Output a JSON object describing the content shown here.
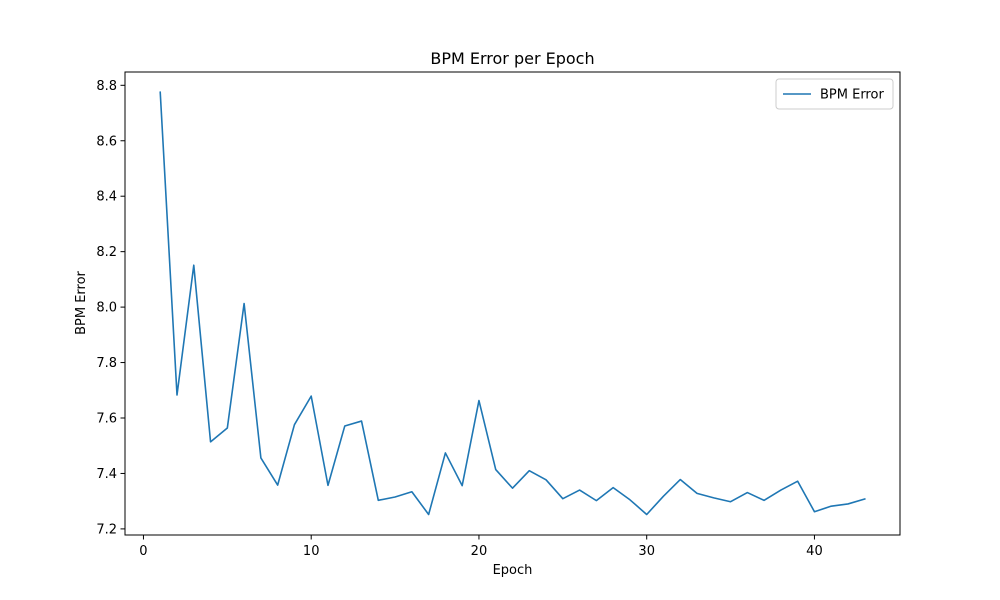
{
  "chart_data": {
    "type": "line",
    "title": "BPM Error per Epoch",
    "xlabel": "Epoch",
    "ylabel": "BPM Error",
    "xlim": [
      -1.1,
      45.1
    ],
    "ylim": [
      7.178,
      8.848
    ],
    "xticks": [
      0,
      10,
      20,
      30,
      40
    ],
    "yticks": [
      7.2,
      7.4,
      7.6,
      7.8,
      8.0,
      8.2,
      8.4,
      8.6,
      8.8
    ],
    "ytick_labels": [
      "7.2",
      "7.4",
      "7.6",
      "7.8",
      "8.0",
      "8.2",
      "8.4",
      "8.6",
      "8.8"
    ],
    "grid": false,
    "legend_position": "top-right",
    "series": [
      {
        "name": "BPM Error",
        "color": "#1f77b4",
        "x": [
          1,
          2,
          3,
          4,
          5,
          6,
          7,
          8,
          9,
          10,
          11,
          12,
          13,
          14,
          15,
          16,
          17,
          18,
          19,
          20,
          21,
          22,
          23,
          24,
          25,
          26,
          27,
          28,
          29,
          30,
          31,
          32,
          33,
          34,
          35,
          36,
          37,
          38,
          39,
          40,
          41,
          42,
          43
        ],
        "y": [
          8.775,
          7.683,
          8.151,
          7.514,
          7.564,
          8.013,
          7.456,
          7.358,
          7.576,
          7.679,
          7.357,
          7.571,
          7.589,
          7.303,
          7.315,
          7.334,
          7.252,
          7.474,
          7.356,
          7.663,
          7.414,
          7.347,
          7.41,
          7.377,
          7.309,
          7.34,
          7.302,
          7.349,
          7.305,
          7.252,
          7.318,
          7.378,
          7.328,
          7.312,
          7.298,
          7.331,
          7.303,
          7.34,
          7.372,
          7.262,
          7.282,
          7.29,
          7.308
        ]
      }
    ]
  }
}
